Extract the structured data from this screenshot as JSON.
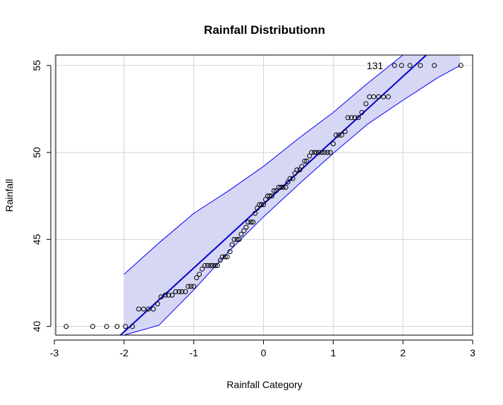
{
  "chart_data": {
    "type": "scatter",
    "subtype": "qq-plot",
    "title": "Rainfall Distributionn",
    "xlabel": "Rainfall Category",
    "ylabel": "Rainfall",
    "xlim": [
      -2.98,
      3.0
    ],
    "ylim": [
      39.5,
      55.6
    ],
    "xticks": [
      -3,
      -2,
      -1,
      0,
      1,
      2,
      3
    ],
    "yticks": [
      40,
      45,
      50,
      55
    ],
    "grid": true,
    "colors": {
      "line": "#0000cc",
      "band_fill": "#d6d6f5",
      "band_edge": "#0000ff",
      "points": "#000000",
      "grid": "#d3d3d3"
    },
    "reference_line": {
      "intercept": 47.03,
      "slope": 3.67
    },
    "confidence_band": {
      "x": [
        -2.0,
        -1.5,
        -1.0,
        -0.5,
        0.0,
        0.5,
        1.0,
        1.5,
        2.0,
        2.5,
        2.82
      ],
      "lower": [
        39.5,
        40.07,
        42.1,
        44.3,
        46.3,
        48.15,
        49.95,
        51.65,
        53.0,
        54.3,
        55.0
      ],
      "upper": [
        43.0,
        44.8,
        46.5,
        47.8,
        49.2,
        50.8,
        52.3,
        54.0,
        55.6,
        55.6,
        55.6
      ]
    },
    "series": [
      {
        "x": [
          -2.83,
          -2.45,
          -2.25,
          -2.1,
          -1.98,
          -1.88,
          -1.79,
          -1.72,
          -1.65,
          -1.58,
          -1.52,
          -1.47,
          -1.41,
          -1.36,
          -1.31,
          -1.26,
          -1.21,
          -1.17,
          -1.12,
          -1.08,
          -1.04,
          -1.0,
          -0.96,
          -0.92,
          -0.88,
          -0.84,
          -0.8,
          -0.76,
          -0.73,
          -0.69,
          -0.66,
          -0.62,
          -0.59,
          -0.55,
          -0.52,
          -0.48,
          -0.45,
          -0.42,
          -0.38,
          -0.35,
          -0.32,
          -0.28,
          -0.25,
          -0.22,
          -0.18,
          -0.15,
          -0.12,
          -0.09,
          -0.06,
          -0.03,
          0.0,
          0.03,
          0.06,
          0.09,
          0.12,
          0.15,
          0.18,
          0.22,
          0.25,
          0.28,
          0.32,
          0.35,
          0.38,
          0.42,
          0.45,
          0.48,
          0.52,
          0.55,
          0.59,
          0.62,
          0.66,
          0.69,
          0.73,
          0.76,
          0.8,
          0.84,
          0.88,
          0.92,
          0.96,
          1.0,
          1.04,
          1.08,
          1.12,
          1.17,
          1.21,
          1.26,
          1.31,
          1.36,
          1.41,
          1.47,
          1.52,
          1.58,
          1.65,
          1.72,
          1.79,
          1.88,
          1.98,
          2.1,
          2.25,
          2.45,
          2.83
        ],
        "y": [
          40.0,
          40.0,
          40.0,
          40.0,
          40.0,
          40.0,
          41.0,
          41.0,
          41.0,
          41.0,
          41.3,
          41.7,
          41.8,
          41.8,
          41.8,
          42.0,
          42.0,
          42.0,
          42.0,
          42.3,
          42.3,
          42.3,
          42.8,
          43.0,
          43.3,
          43.5,
          43.5,
          43.5,
          43.5,
          43.5,
          43.5,
          43.8,
          44.0,
          44.0,
          44.0,
          44.3,
          44.7,
          45.0,
          45.0,
          45.0,
          45.3,
          45.5,
          45.7,
          46.0,
          46.0,
          46.0,
          46.5,
          46.8,
          47.0,
          47.0,
          47.0,
          47.3,
          47.5,
          47.5,
          47.5,
          47.8,
          47.8,
          48.0,
          48.0,
          48.0,
          48.0,
          48.3,
          48.5,
          48.5,
          48.8,
          49.0,
          49.0,
          49.2,
          49.5,
          49.5,
          49.8,
          50.0,
          50.0,
          50.0,
          50.0,
          50.0,
          50.0,
          50.0,
          50.0,
          50.5,
          51.0,
          51.0,
          51.0,
          51.2,
          52.0,
          52.0,
          52.0,
          52.0,
          52.3,
          52.8,
          53.2,
          53.2,
          53.2,
          53.2,
          53.2,
          55.0,
          55.0,
          55.0,
          55.0,
          55.0,
          55.0
        ]
      }
    ],
    "annotations": [
      {
        "text": "131",
        "x": 1.72,
        "y": 55.0
      }
    ]
  }
}
